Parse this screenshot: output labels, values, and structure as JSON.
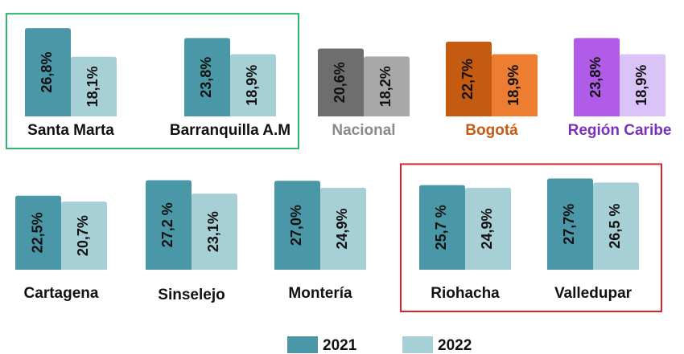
{
  "chart_data": {
    "type": "bar",
    "categories": [
      "Santa Marta",
      "Barranquilla A.M",
      "Nacional",
      "Bogotá",
      "Región Caribe",
      "Cartagena",
      "Sinselejo",
      "Montería",
      "Riohacha",
      "Valledupar"
    ],
    "series": [
      {
        "name": "2021",
        "color": "#4a97a7",
        "values": [
          26.8,
          23.8,
          20.6,
          22.7,
          23.8,
          22.5,
          27.2,
          27.0,
          25.7,
          27.7
        ],
        "value_labels": [
          "26,8%",
          "23,8%",
          "20,6%",
          "22,7%",
          "23,8%",
          "22,5%",
          "27,2 %",
          "27,0%",
          "25,7 %",
          "27,7%"
        ]
      },
      {
        "name": "2022",
        "color": "#a6d0d5",
        "values": [
          18.1,
          18.9,
          18.2,
          18.9,
          18.9,
          20.7,
          23.1,
          24.9,
          24.9,
          26.5
        ],
        "value_labels": [
          "18,1%",
          "18,9%",
          "18,2%",
          "18,9%",
          "18,9%",
          "20,7%",
          "23,1%",
          "24,9%",
          "24,9%",
          "26,5 %"
        ]
      }
    ],
    "category_colors": {
      "Nacional": {
        "bars": [
          "#6e6e6e",
          "#a8a8a8"
        ],
        "label": "#8a8a8a"
      },
      "Bogotá": {
        "bars": [
          "#c55a11",
          "#ed7d31"
        ],
        "label": "#c55a11"
      },
      "Región Caribe": {
        "bars": [
          "#b05ce8",
          "#d9c3f7"
        ],
        "label": "#7a30b8"
      }
    },
    "boxes": [
      {
        "categories": [
          "Santa Marta",
          "Barranquilla A.M"
        ],
        "color": "#2db86b"
      },
      {
        "categories": [
          "Riohacha",
          "Valledupar"
        ],
        "color": "#e0202a"
      }
    ]
  }
}
